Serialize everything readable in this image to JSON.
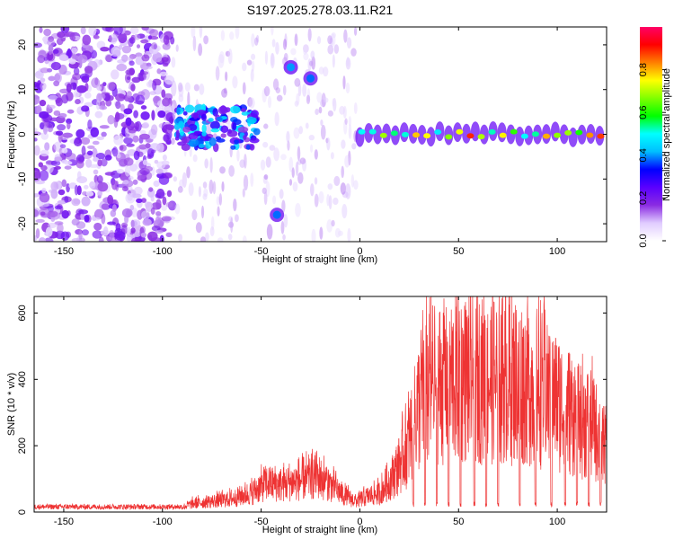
{
  "title": "S197.2025.278.03.11.R21",
  "chart_data": [
    {
      "type": "heatmap",
      "xlabel": "Height of straight line (km)",
      "ylabel": "Frequency (Hz)",
      "xlim": [
        -165,
        125
      ],
      "ylim": [
        -24,
        24
      ],
      "x_ticks": [
        -150,
        -100,
        -50,
        0,
        50,
        100
      ],
      "y_ticks": [
        -20,
        -10,
        0,
        10,
        20
      ],
      "colorbar": {
        "label": "Normalized spectral amplitude",
        "range": [
          0,
          1
        ],
        "ticks": [
          0.0,
          0.2,
          0.4,
          0.6,
          0.8
        ],
        "tick_labels": [
          "0.0",
          "0.2",
          "0.4",
          "0.6",
          "0.8"
        ],
        "colormap": [
          "#ffffff",
          "#e0ccff",
          "#8a2be2",
          "#5a00ff",
          "#0000ff",
          "#00bfff",
          "#00ffff",
          "#00ff00",
          "#80ff00",
          "#ffff00",
          "#ff8000",
          "#ff0000",
          "#ff0066"
        ]
      },
      "features": [
        {
          "name": "noise",
          "x_range": [
            -165,
            -95
          ],
          "y_range": [
            -24,
            24
          ],
          "amplitude": 0.15
        },
        {
          "name": "cluster",
          "x_range": [
            -93,
            -52
          ],
          "y_range": [
            -3,
            6
          ],
          "amplitude": 0.35
        },
        {
          "name": "blob",
          "x": -35,
          "y": 15,
          "amplitude": 0.4
        },
        {
          "name": "blob",
          "x": -25,
          "y": 12.5,
          "amplitude": 0.38
        },
        {
          "name": "blob",
          "x": -42,
          "y": -18,
          "amplitude": 0.38
        },
        {
          "name": "carrier",
          "x_range": [
            0,
            125
          ],
          "y": 0,
          "amplitude": 0.85
        }
      ]
    },
    {
      "type": "line",
      "xlabel": "Height of straight line (km)",
      "ylabel": "SNR (10 * v/v)",
      "xlim": [
        -165,
        125
      ],
      "ylim": [
        0,
        650
      ],
      "x_ticks": [
        -150,
        -100,
        -50,
        0,
        50,
        100
      ],
      "y_ticks": [
        0,
        200,
        400,
        600
      ],
      "color": "#ee3333",
      "envelope": [
        [
          -165,
          20
        ],
        [
          -90,
          20
        ],
        [
          -85,
          35
        ],
        [
          -75,
          45
        ],
        [
          -65,
          55
        ],
        [
          -55,
          80
        ],
        [
          -48,
          120
        ],
        [
          -40,
          115
        ],
        [
          -30,
          130
        ],
        [
          -22,
          150
        ],
        [
          -14,
          110
        ],
        [
          -8,
          70
        ],
        [
          -2,
          45
        ],
        [
          2,
          60
        ],
        [
          10,
          80
        ],
        [
          16,
          140
        ],
        [
          20,
          200
        ],
        [
          25,
          300
        ],
        [
          30,
          450
        ],
        [
          35,
          520
        ],
        [
          40,
          540
        ],
        [
          50,
          560
        ],
        [
          60,
          565
        ],
        [
          70,
          560
        ],
        [
          80,
          550
        ],
        [
          90,
          520
        ],
        [
          100,
          460
        ],
        [
          110,
          400
        ],
        [
          118,
          360
        ],
        [
          125,
          270
        ]
      ],
      "dropouts": [
        27,
        33,
        39,
        45,
        51,
        58,
        64,
        70,
        81,
        89,
        97,
        104,
        110,
        116,
        122
      ]
    }
  ]
}
